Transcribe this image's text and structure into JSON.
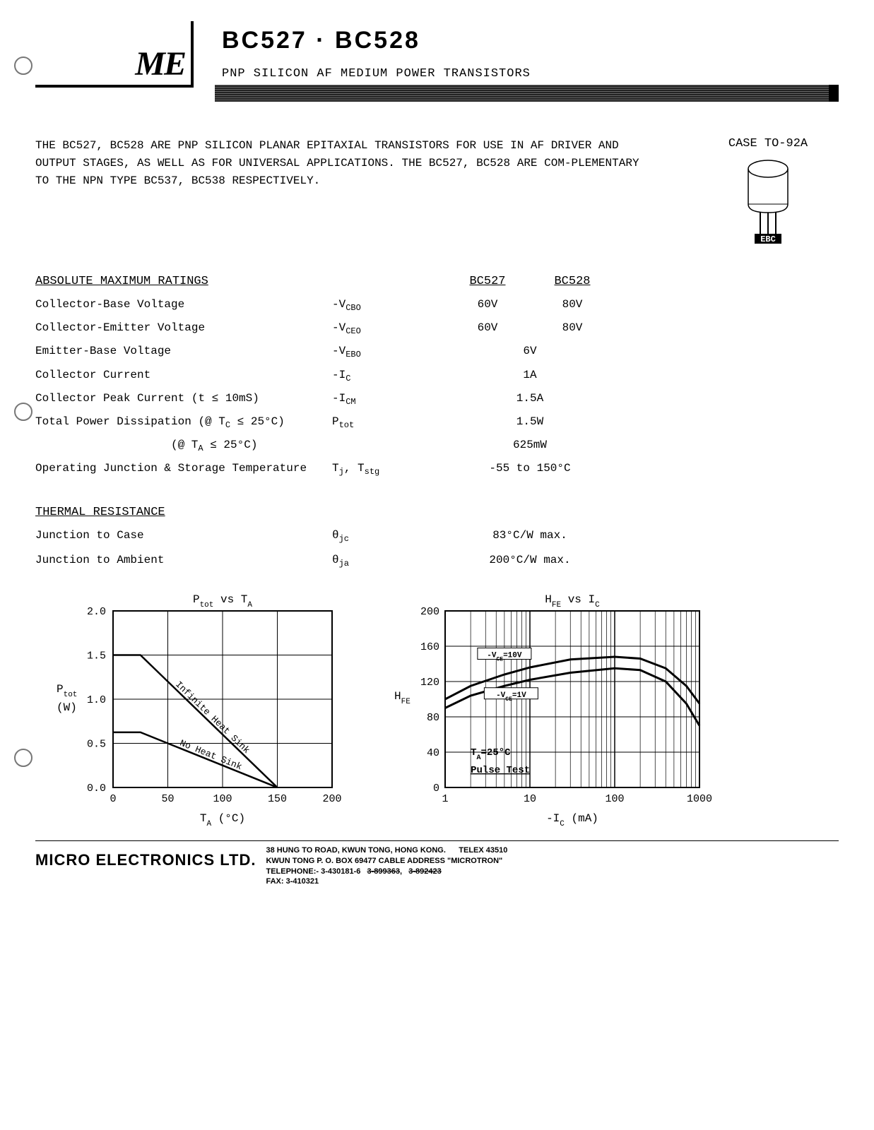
{
  "header": {
    "logo_text": "ME",
    "title": "BC527 · BC528",
    "subtitle": "PNP SILICON AF MEDIUM POWER TRANSISTORS"
  },
  "intro": "THE BC527, BC528 ARE PNP SILICON PLANAR EPITAXIAL TRANSISTORS FOR USE IN AF DRIVER AND OUTPUT STAGES, AS WELL AS FOR UNIVERSAL APPLICATIONS.  THE BC527, BC528 ARE COM-PLEMENTARY TO THE NPN TYPE BC537, BC538 RESPECTIVELY.",
  "case": {
    "label": "CASE TO-92A",
    "pins": "EBC"
  },
  "ratings": {
    "section_title": "ABSOLUTE MAXIMUM RATINGS",
    "col_527": "BC527",
    "col_528": "BC528",
    "rows": [
      {
        "name": "Collector-Base Voltage",
        "symbol_html": "-V<sub>CBO</sub>",
        "v527": "60V",
        "v528": "80V",
        "split": true
      },
      {
        "name": "Collector-Emitter Voltage",
        "symbol_html": "-V<sub>CEO</sub>",
        "v527": "60V",
        "v528": "80V",
        "split": true
      },
      {
        "name": "Emitter-Base Voltage",
        "symbol_html": "-V<sub>EBO</sub>",
        "value": "6V"
      },
      {
        "name": "Collector Current",
        "symbol_html": "-I<sub>C</sub>",
        "value": "1A"
      },
      {
        "name": "Collector Peak Current (t ≤ 10mS)",
        "symbol_html": "-I<sub>CM</sub>",
        "value": "1.5A"
      },
      {
        "name": "Total Power Dissipation (@ T<sub>C</sub> ≤ 25°C)",
        "symbol_html": "P<sub>tot</sub>",
        "value": "1.5W"
      },
      {
        "name": "            (@ T<sub>A</sub> ≤ 25°C)",
        "symbol_html": "",
        "value": "625mW"
      },
      {
        "name": "Operating Junction & Storage Temperature",
        "symbol_html": "T<sub>j</sub>, T<sub>stg</sub>",
        "value": "-55 to 150°C"
      }
    ]
  },
  "thermal": {
    "section_title": "THERMAL RESISTANCE",
    "rows": [
      {
        "name": "Junction to Case",
        "symbol_html": "θ<sub>jc</sub>",
        "value": "83°C/W  max."
      },
      {
        "name": "Junction to Ambient",
        "symbol_html": "θ<sub>ja</sub>",
        "value": "200°C/W  max."
      }
    ]
  },
  "chart_ptot": {
    "title_html": "P<sub>tot</sub>  vs  T<sub>A</sub>",
    "ylabel_html": "P<sub>tot</sub><br>(W)",
    "xlabel_html": "T<sub>A</sub> (°C)",
    "type": "line",
    "xlim": [
      0,
      200
    ],
    "ylim": [
      0,
      2.0
    ],
    "xticks": [
      0,
      50,
      100,
      150,
      200
    ],
    "yticks": [
      0,
      0.5,
      1.0,
      1.5,
      2.0
    ],
    "background_color": "#ffffff",
    "grid_color": "#000000",
    "line_color": "#000000",
    "line_width": 2.5,
    "tick_fontsize": 15,
    "series": [
      {
        "label": "Infinite Heat Sink",
        "points": [
          [
            0,
            1.5
          ],
          [
            25,
            1.5
          ],
          [
            150,
            0
          ]
        ]
      },
      {
        "label": "No Heat Sink",
        "points": [
          [
            0,
            0.625
          ],
          [
            25,
            0.625
          ],
          [
            150,
            0
          ]
        ]
      }
    ]
  },
  "chart_hfe": {
    "title_html": "H<sub>FE</sub>  vs  I<sub>C</sub>",
    "ylabel_html": "H<sub>FE</sub>",
    "xlabel_html": "-I<sub>C</sub> (mA)",
    "type": "line-logx",
    "xlim": [
      1,
      1000
    ],
    "ylim": [
      0,
      200
    ],
    "xticks": [
      1,
      10,
      100,
      1000
    ],
    "yticks": [
      0,
      40,
      80,
      120,
      160,
      200
    ],
    "background_color": "#ffffff",
    "grid_color": "#000000",
    "line_color": "#000000",
    "line_width": 3,
    "tick_fontsize": 15,
    "annotation1": "-V_CE=10V",
    "annotation2": "-V_CE=1V",
    "note_html": "T<sub>A</sub>=25°C<br><u>Pulse Test</u>",
    "series": [
      {
        "label": "-VCE=10V",
        "points": [
          [
            1,
            100
          ],
          [
            2,
            115
          ],
          [
            5,
            128
          ],
          [
            10,
            136
          ],
          [
            30,
            145
          ],
          [
            100,
            148
          ],
          [
            200,
            146
          ],
          [
            400,
            135
          ],
          [
            700,
            115
          ],
          [
            1000,
            95
          ]
        ]
      },
      {
        "label": "-VCE=1V",
        "points": [
          [
            1,
            90
          ],
          [
            2,
            104
          ],
          [
            5,
            115
          ],
          [
            10,
            122
          ],
          [
            30,
            130
          ],
          [
            100,
            135
          ],
          [
            200,
            133
          ],
          [
            400,
            120
          ],
          [
            700,
            95
          ],
          [
            1000,
            70
          ]
        ]
      }
    ]
  },
  "footer": {
    "company": "MICRO ELECTRONICS LTD.",
    "line1": "38 HUNG TO ROAD, KWUN TONG, HONG KONG.",
    "line2": "KWUN TONG P. O. BOX 69477 CABLE ADDRESS \"MICROTRON\"",
    "line3_a": "TELEPHONE:-  3-430181-6",
    "line3_b_strike": "3-899363",
    "line3_c_strike": "3-892423",
    "telex": "TELEX 43510",
    "fax": "FAX: 3-410321"
  }
}
